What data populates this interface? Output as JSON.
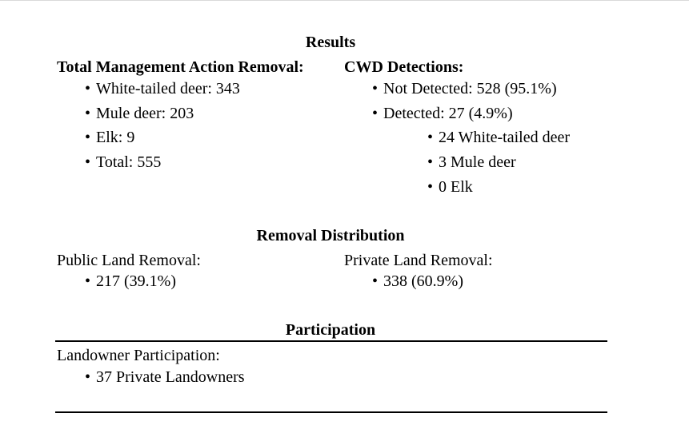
{
  "results": {
    "heading": "Results",
    "removal": {
      "title": "Total Management Action Removal:",
      "items": [
        "White-tailed deer: 343",
        "Mule deer: 203",
        "Elk: 9",
        "Total: 555"
      ]
    },
    "cwd": {
      "title": "CWD Detections:",
      "items": [
        "Not Detected: 528 (95.1%)",
        "Detected: 27 (4.9%)"
      ],
      "sub_items": [
        "24 White-tailed deer",
        "3 Mule deer",
        "0 Elk"
      ]
    }
  },
  "distribution": {
    "heading": "Removal Distribution",
    "public": {
      "label": "Public Land Removal:",
      "value": "217 (39.1%)"
    },
    "private": {
      "label": "Private Land Removal:",
      "value": "338 (60.9%)"
    }
  },
  "participation": {
    "heading": "Participation",
    "label": "Landowner Participation:",
    "value": "37 Private Landowners"
  }
}
